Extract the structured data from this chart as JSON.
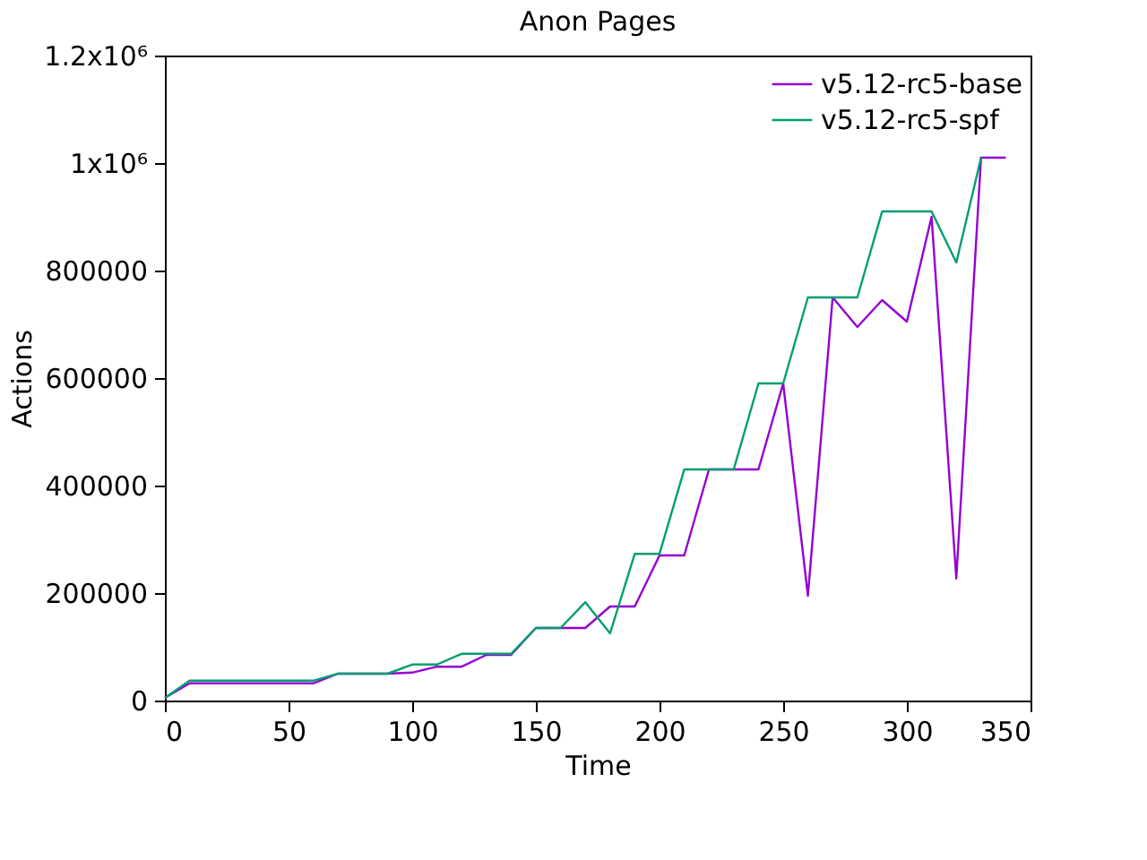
{
  "chart_data": {
    "type": "line",
    "title": "Anon Pages",
    "xlabel": "Time",
    "ylabel": "Actions",
    "xlim": [
      0,
      350
    ],
    "xticks": [
      0,
      50,
      100,
      150,
      200,
      250,
      300,
      350
    ],
    "ylim": [
      0,
      1200000
    ],
    "yticks": [
      0,
      200000,
      400000,
      600000,
      800000,
      {
        "value": 1000000,
        "label": "1x10⁶"
      },
      {
        "value": 1200000,
        "label": "1.2x10⁶"
      }
    ],
    "grid": false,
    "legend": "top right",
    "series": [
      {
        "name": "v5.12-rc5-base",
        "color": "#9400d3",
        "x": [
          0,
          10,
          20,
          30,
          40,
          50,
          60,
          70,
          80,
          90,
          100,
          110,
          120,
          130,
          140,
          150,
          160,
          170,
          180,
          190,
          200,
          210,
          220,
          230,
          240,
          250,
          260,
          270,
          280,
          290,
          300,
          310,
          320,
          330,
          340
        ],
        "values": [
          5000,
          32000,
          32000,
          32000,
          32000,
          32000,
          32000,
          50000,
          50000,
          50000,
          52000,
          63000,
          63000,
          85000,
          85000,
          135000,
          135000,
          135000,
          175000,
          175000,
          270000,
          270000,
          430000,
          430000,
          430000,
          590000,
          195000,
          750000,
          695000,
          745000,
          705000,
          900000,
          227000,
          1010000,
          1010000
        ]
      },
      {
        "name": "v5.12-rc5-spf",
        "color": "#009e73",
        "x": [
          0,
          10,
          20,
          30,
          40,
          50,
          60,
          70,
          80,
          90,
          100,
          110,
          120,
          130,
          140,
          150,
          160,
          170,
          180,
          190,
          200,
          210,
          220,
          230,
          240,
          250,
          260,
          270,
          280,
          290,
          300,
          310,
          320,
          330
        ],
        "values": [
          5000,
          37000,
          37000,
          37000,
          37000,
          37000,
          37000,
          50000,
          50000,
          50000,
          67000,
          67000,
          87000,
          87000,
          87000,
          135000,
          135000,
          183000,
          125000,
          273000,
          273000,
          430000,
          430000,
          430000,
          590000,
          590000,
          750000,
          750000,
          750000,
          910000,
          910000,
          910000,
          815000,
          1010000
        ]
      }
    ]
  }
}
